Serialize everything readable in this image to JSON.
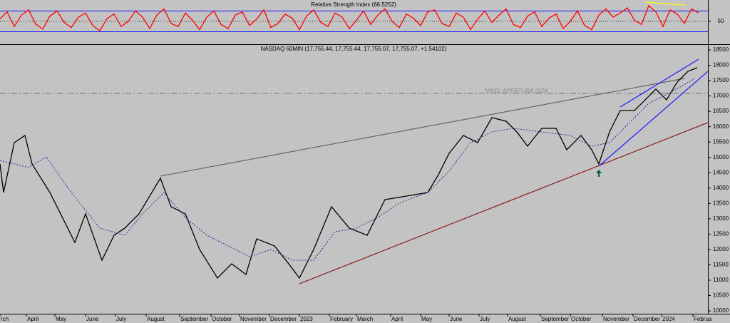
{
  "chart_data": [
    {
      "type": "line",
      "title": "Relative Strength Index (66.5252)",
      "xlim": [
        0,
        993
      ],
      "ylim": [
        6,
        91
      ],
      "yticks": [
        50
      ],
      "levels": [
        30,
        70
      ],
      "level_color": "#1a1aff",
      "x": [
        0,
        10,
        20,
        30,
        40,
        50,
        60,
        70,
        80,
        90,
        100,
        110,
        120,
        130,
        140,
        150,
        160,
        170,
        180,
        190,
        200,
        210,
        220,
        230,
        240,
        250,
        260,
        270,
        280,
        290,
        300,
        310,
        320,
        330,
        340,
        350,
        360,
        370,
        380,
        390,
        400,
        410,
        420,
        430,
        440,
        450,
        460,
        470,
        480,
        490,
        500,
        510,
        520,
        530,
        540,
        550,
        560,
        570,
        580,
        590,
        600,
        610,
        620,
        630,
        640,
        650,
        660,
        670,
        680,
        690,
        700,
        710,
        720,
        730,
        740,
        750,
        760,
        770,
        780,
        790,
        800,
        810,
        820,
        830,
        840,
        850,
        860,
        870,
        880,
        890,
        900,
        910,
        920,
        930,
        940,
        950,
        960,
        970,
        980
      ],
      "series": [
        {
          "name": "RSI",
          "color": "#ff0000",
          "values": [
            55,
            68,
            40,
            62,
            72,
            45,
            35,
            60,
            70,
            48,
            38,
            58,
            66,
            42,
            32,
            55,
            64,
            40,
            50,
            70,
            58,
            36,
            62,
            74,
            46,
            40,
            66,
            52,
            34,
            58,
            70,
            44,
            36,
            62,
            68,
            42,
            54,
            72,
            38,
            46,
            64,
            56,
            34,
            60,
            72,
            48,
            40,
            66,
            58,
            36,
            52,
            70,
            44,
            62,
            74,
            50,
            38,
            64,
            56,
            42,
            68,
            72,
            46,
            40,
            66,
            58,
            34,
            54,
            70,
            48,
            62,
            74,
            44,
            38,
            60,
            68,
            40,
            56,
            64,
            36,
            50,
            70,
            42,
            34,
            62,
            74,
            58,
            66,
            76,
            52,
            44,
            80,
            68,
            40,
            72,
            64,
            46,
            74,
            66
          ]
        }
      ],
      "lines": [
        {
          "x": [
            905,
            962
          ],
          "y": [
            87,
            81
          ],
          "color": "#ffff00"
        }
      ]
    },
    {
      "type": "line",
      "title": "NASDAQ 60MIN (17,755.44, 17,755.44, 17,755.07, 17,755.07, +1.54102)",
      "annotation": "NIVEL APERTURA 2024",
      "xlim": [
        0,
        993
      ],
      "ylim": [
        9907,
        18663
      ],
      "yticks": [
        10000,
        10500,
        11000,
        11500,
        12000,
        12500,
        13000,
        13500,
        14000,
        14500,
        15000,
        15500,
        16000,
        16500,
        17000,
        17500,
        18000,
        18500
      ],
      "xticks": [
        {
          "value": 0,
          "label": "rch"
        },
        {
          "value": 37,
          "label": "April"
        },
        {
          "value": 77,
          "label": "May"
        },
        {
          "value": 120,
          "label": "June"
        },
        {
          "value": 162,
          "label": "July"
        },
        {
          "value": 205,
          "label": "August"
        },
        {
          "value": 252,
          "label": "September"
        },
        {
          "value": 296,
          "label": "October"
        },
        {
          "value": 336,
          "label": "November"
        },
        {
          "value": 378,
          "label": "December"
        },
        {
          "value": 420,
          "label": "2023"
        },
        {
          "value": 462,
          "label": "February"
        },
        {
          "value": 500,
          "label": "March"
        },
        {
          "value": 548,
          "label": "April"
        },
        {
          "value": 590,
          "label": "May"
        },
        {
          "value": 630,
          "label": "June"
        },
        {
          "value": 672,
          "label": "July"
        },
        {
          "value": 712,
          "label": "August"
        },
        {
          "value": 758,
          "label": "September"
        },
        {
          "value": 800,
          "label": "October"
        },
        {
          "value": 845,
          "label": "November"
        },
        {
          "value": 888,
          "label": "December"
        },
        {
          "value": 928,
          "label": "2024"
        },
        {
          "value": 972,
          "label": "Februa"
        }
      ],
      "series": [
        {
          "name": "NASDAQ",
          "color": "#000000",
          "x": [
            0,
            5,
            20,
            35,
            45,
            70,
            85,
            105,
            120,
            143,
            160,
            175,
            195,
            225,
            240,
            260,
            280,
            305,
            325,
            345,
            360,
            385,
            405,
            420,
            440,
            465,
            490,
            515,
            540,
            570,
            600,
            615,
            630,
            650,
            670,
            690,
            710,
            725,
            740,
            760,
            780,
            795,
            815,
            830,
            840,
            855,
            870,
            890,
            905,
            920,
            935,
            950,
            965,
            978
          ],
          "values": [
            14784,
            13856,
            15481,
            15714,
            14785,
            13856,
            13160,
            12230,
            13160,
            11650,
            12462,
            12695,
            13160,
            14320,
            13392,
            13160,
            12000,
            11070,
            11534,
            11186,
            12347,
            12115,
            11534,
            11070,
            12000,
            13392,
            12695,
            12462,
            13624,
            13740,
            13856,
            14437,
            15133,
            15714,
            15481,
            16294,
            16178,
            15830,
            15365,
            15946,
            15946,
            15249,
            15714,
            15249,
            14785,
            15830,
            16526,
            16526,
            16874,
            17223,
            16874,
            17455,
            17803,
            17920
          ]
        },
        {
          "name": "MA",
          "color": "#3a2a9a",
          "dashed": true,
          "x": [
            0,
            40,
            65,
            100,
            140,
            175,
            200,
            230,
            260,
            290,
            320,
            350,
            380,
            410,
            440,
            470,
            500,
            530,
            560,
            600,
            630,
            660,
            690,
            720,
            760,
            800,
            830,
            855,
            880,
            910,
            940,
            975
          ],
          "values": [
            14900,
            14670,
            15016,
            13856,
            12695,
            12462,
            13160,
            13856,
            13044,
            12462,
            12115,
            11766,
            12000,
            11650,
            11650,
            12579,
            12695,
            13044,
            13508,
            13856,
            14553,
            15481,
            15830,
            15946,
            15830,
            15714,
            15365,
            15481,
            16062,
            16758,
            17107,
            17571
          ]
        }
      ],
      "lines": [
        {
          "x": [
            420,
            993
          ],
          "y": [
            10884,
            16132
          ],
          "color": "#8b1a1a"
        },
        {
          "x": [
            225,
            960
          ],
          "y": [
            14390,
            17571
          ],
          "color": "#666666"
        },
        {
          "x": [
            870,
            980
          ],
          "y": [
            16642,
            18198
          ],
          "color": "#1a1aff"
        },
        {
          "x": [
            840,
            993
          ],
          "y": [
            14715,
            17803
          ],
          "color": "#1a1aff"
        }
      ],
      "level": 17084
    }
  ]
}
